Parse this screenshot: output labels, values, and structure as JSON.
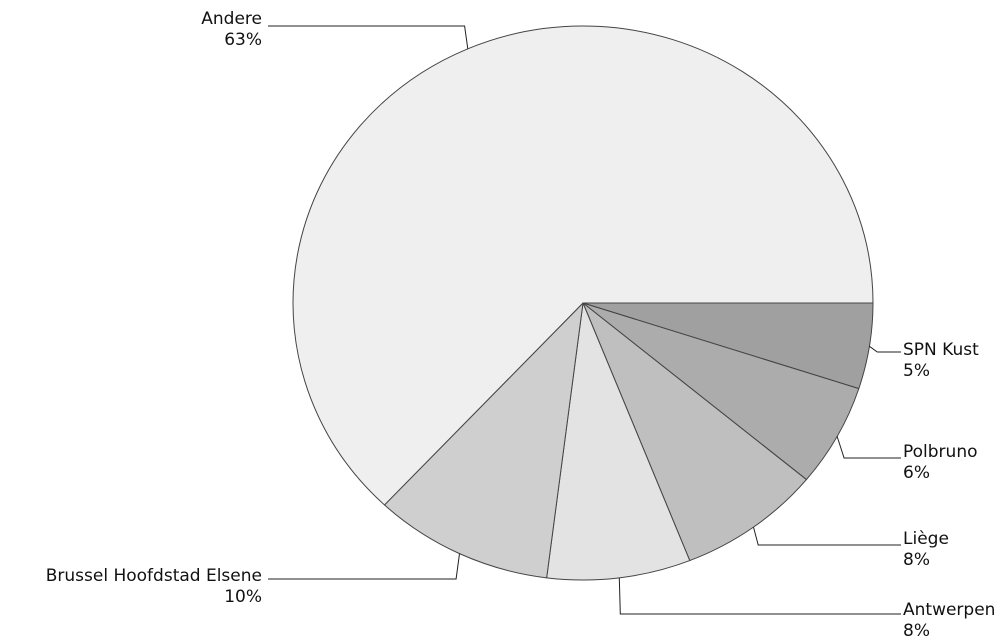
{
  "chart_data": {
    "type": "pie",
    "start": "3 o'clock",
    "direction": "clockwise",
    "slices": [
      {
        "label": "SPN Kust",
        "value": 5,
        "display": "5%",
        "color": "#a0a0a0"
      },
      {
        "label": "Polbruno",
        "value": 6,
        "display": "6%",
        "color": "#acacac"
      },
      {
        "label": "Liège",
        "value": 8,
        "display": "8%",
        "color": "#bfbfbf"
      },
      {
        "label": "Antwerpen",
        "value": 8,
        "display": "8%",
        "color": "#e3e3e3"
      },
      {
        "label": "Brussel Hoofdstad Elsene",
        "value": 10,
        "display": "10%",
        "color": "#cfcfcf"
      },
      {
        "label": "Andere",
        "value": 63,
        "display": "63%",
        "color": "#efefef"
      }
    ]
  }
}
